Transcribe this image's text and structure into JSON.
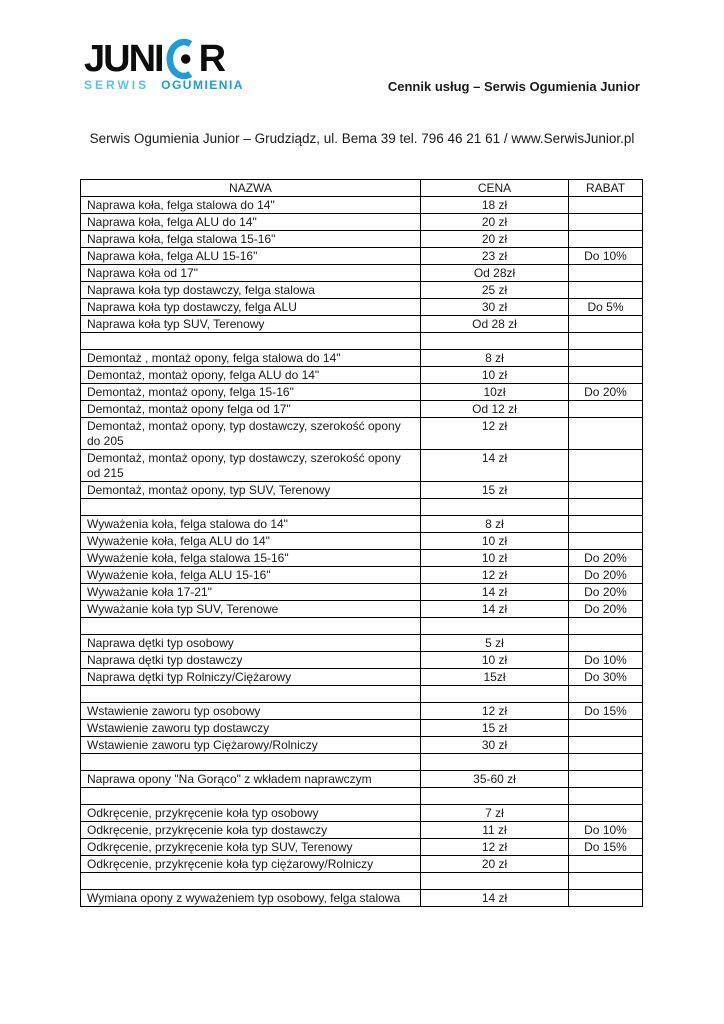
{
  "logo": {
    "word_start": "JUNI",
    "word_end": "R",
    "tagline_left": "SERWIS",
    "tagline_right": "OGUMIENIA",
    "colors": {
      "blue": "#1e9cd8",
      "light_blue": "#58c0ee",
      "black": "#0d0d0d"
    }
  },
  "header": {
    "title": "Cennik usług – Serwis Ogumienia Junior",
    "address": "Serwis Ogumienia Junior – Grudziądz, ul. Bema 39 tel.  796 46 21 61  /  www.SerwisJunior.pl"
  },
  "table": {
    "headers": [
      "NAZWA",
      "CENA",
      "RABAT"
    ],
    "rows": [
      {
        "name": "Naprawa koła, felga stalowa do 14\"",
        "price": "18 zł",
        "discount": ""
      },
      {
        "name": "Naprawa koła, felga ALU do 14\"",
        "price": "20 zł",
        "discount": ""
      },
      {
        "name": "Naprawa koła, felga stalowa 15-16\"",
        "price": "20 zł",
        "discount": ""
      },
      {
        "name": "Naprawa koła, felga ALU 15-16\"",
        "price": "23 zł",
        "discount": "Do 10%"
      },
      {
        "name": "Naprawa koła od 17\"",
        "price": "Od 28zł",
        "discount": ""
      },
      {
        "name": "Naprawa koła typ dostawczy, felga stalowa",
        "price": "25 zł",
        "discount": ""
      },
      {
        "name": "Naprawa koła typ dostawczy, felga ALU",
        "price": "30 zł",
        "discount": "Do 5%"
      },
      {
        "name": "Naprawa koła typ SUV, Terenowy",
        "price": "Od 28 zł",
        "discount": ""
      },
      {
        "name": "",
        "price": "",
        "discount": ""
      },
      {
        "name": "Demontaż , montaż opony, felga stalowa do 14\"",
        "price": "8 zł",
        "discount": ""
      },
      {
        "name": "Demontaż, montaż opony, felga ALU do 14\"",
        "price": "10 zł",
        "discount": ""
      },
      {
        "name": "Demontaż, montaż opony, felga 15-16\"",
        "price": "10zł",
        "discount": "Do 20%"
      },
      {
        "name": "Demontaż, montaż opony felga od 17\"",
        "price": "Od 12 zł",
        "discount": ""
      },
      {
        "name": "Demontaż, montaż opony, typ dostawczy, szerokość opony\ndo 205",
        "price": "12 zł",
        "discount": ""
      },
      {
        "name": "Demontaż, montaż opony, typ dostawczy, szerokość opony\nod 215",
        "price": "14 zł",
        "discount": ""
      },
      {
        "name": "Demontaż, montaż opony, typ SUV, Terenowy",
        "price": "15 zł",
        "discount": ""
      },
      {
        "name": "",
        "price": "",
        "discount": ""
      },
      {
        "name": "Wyważenia koła, felga stalowa do 14\"",
        "price": "8 zł",
        "discount": ""
      },
      {
        "name": "Wyważenie koła, felga ALU do 14\"",
        "price": "10 zł",
        "discount": ""
      },
      {
        "name": "Wyważenie koła, felga stalowa 15-16\"",
        "price": "10 zł",
        "discount": "Do 20%"
      },
      {
        "name": "Wyważenie koła, felga ALU 15-16\"",
        "price": "12 zł",
        "discount": "Do 20%"
      },
      {
        "name": "Wyważanie koła 17-21\"",
        "price": "14 zł",
        "discount": "Do 20%"
      },
      {
        "name": "Wyważanie koła typ SUV, Terenowe",
        "price": "14 zł",
        "discount": "Do 20%"
      },
      {
        "name": "",
        "price": "",
        "discount": ""
      },
      {
        "name": "Naprawa dętki typ osobowy",
        "price": "5 zł",
        "discount": ""
      },
      {
        "name": "Naprawa dętki typ dostawczy",
        "price": "10 zł",
        "discount": "Do 10%"
      },
      {
        "name": "Naprawa dętki typ Rolniczy/Ciężarowy",
        "price": "15zł",
        "discount": "Do 30%"
      },
      {
        "name": "",
        "price": "",
        "discount": ""
      },
      {
        "name": "Wstawienie zaworu typ osobowy",
        "price": "12 zł",
        "discount": "Do 15%"
      },
      {
        "name": "Wstawienie zaworu typ dostawczy",
        "price": "15 zł",
        "discount": ""
      },
      {
        "name": "Wstawienie zaworu typ Ciężarowy/Rolniczy",
        "price": "30 zł",
        "discount": ""
      },
      {
        "name": "",
        "price": "",
        "discount": ""
      },
      {
        "name": "Naprawa opony \"Na Gorąco\" z wkładem naprawczym",
        "price": "35-60 zł",
        "discount": ""
      },
      {
        "name": "",
        "price": "",
        "discount": ""
      },
      {
        "name": "Odkręcenie, przykręcenie koła typ osobowy",
        "price": "7 zł",
        "discount": ""
      },
      {
        "name": "Odkręcenie, przykręcenie koła typ dostawczy",
        "price": "11 zł",
        "discount": "Do 10%"
      },
      {
        "name": "Odkręcenie, przykręcenie koła typ SUV, Terenowy",
        "price": "12 zł",
        "discount": "Do 15%"
      },
      {
        "name": "Odkręcenie, przykręcenie koła typ ciężarowy/Rolniczy",
        "price": "20 zł",
        "discount": ""
      },
      {
        "name": "",
        "price": "",
        "discount": ""
      },
      {
        "name": "Wymiana opony z wyważeniem typ osobowy, felga stalowa",
        "price": "14 zł",
        "discount": ""
      }
    ]
  }
}
